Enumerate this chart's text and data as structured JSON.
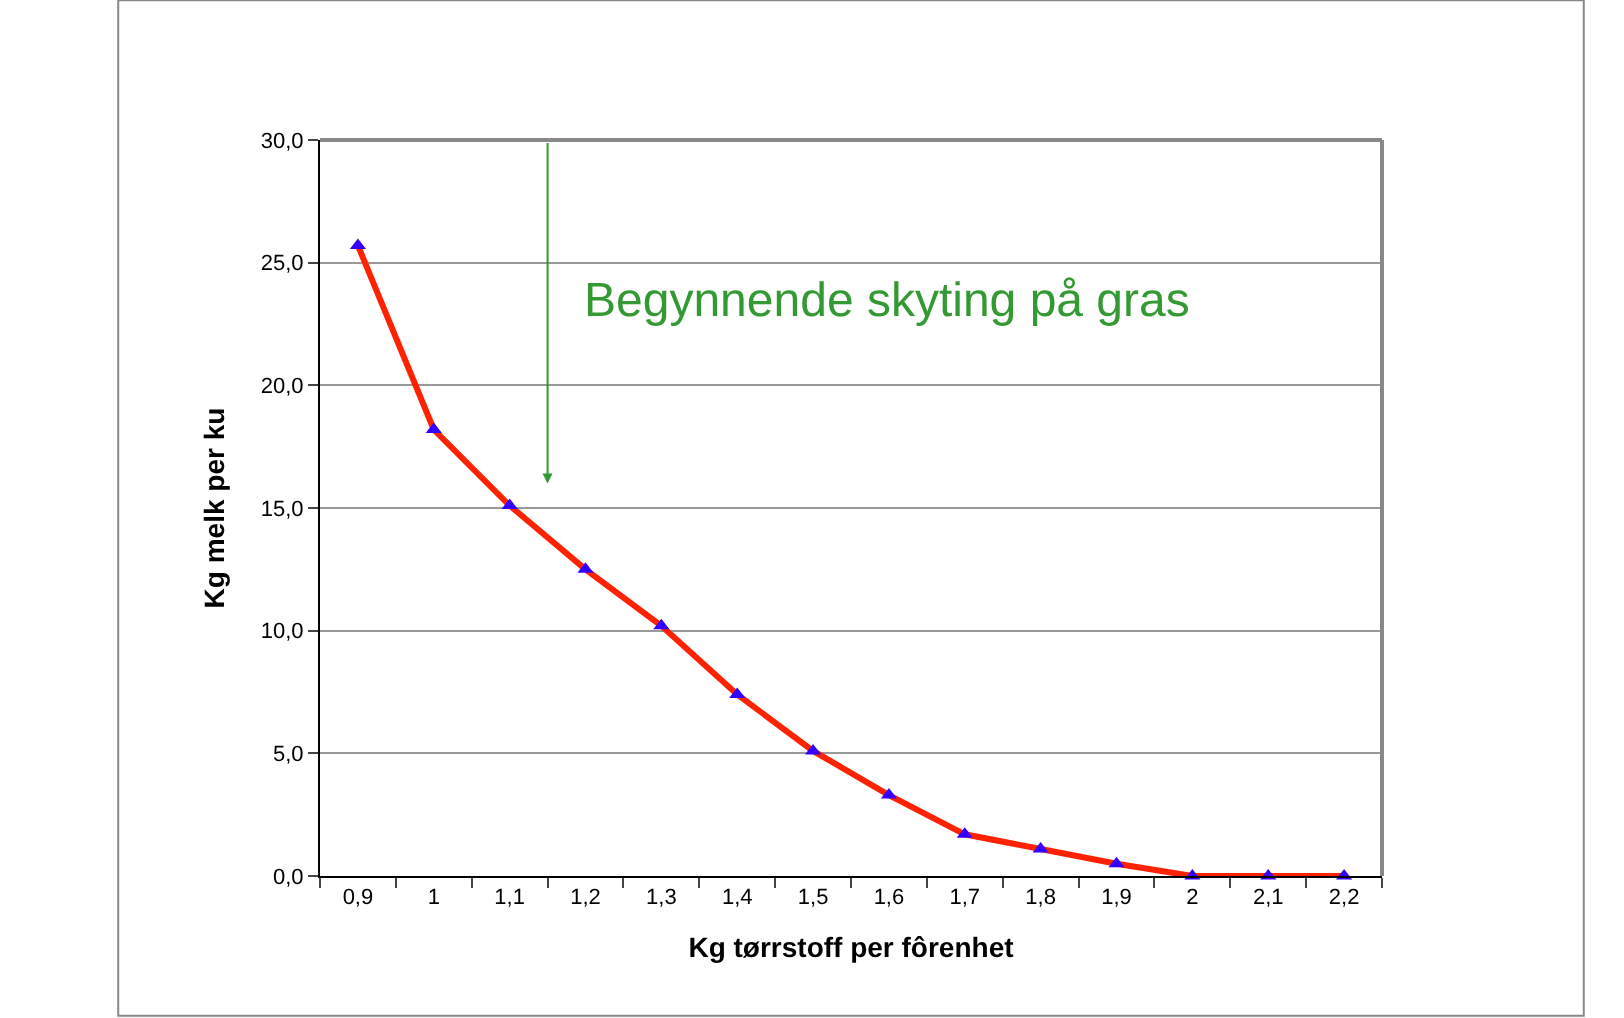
{
  "chart_data": {
    "type": "line",
    "xlabel": "Kg tørrstoff per fôrenhet",
    "ylabel": "Kg melk per ku",
    "categories": [
      "0,9",
      "1",
      "1,1",
      "1,2",
      "1,3",
      "1,4",
      "1,5",
      "1,6",
      "1,7",
      "1,8",
      "1,9",
      "2",
      "2,1",
      "2,2"
    ],
    "series": [
      {
        "color": "#ff2200",
        "colors": [
          "#3300ff",
          "#3300ff",
          "#3300ff",
          "#3300ff",
          "#3300ff",
          "#3300ff",
          "#3300ff",
          "#3300ff",
          "#3300ff",
          "#3300ff",
          "#3300ff",
          "#3300ff",
          "#3300ff",
          "#3300ff"
        ],
        "values": [
          25.7,
          18.2,
          15.1,
          12.5,
          10.2,
          7.4,
          5.1,
          3.3,
          1.7,
          1.1,
          0.5,
          0,
          0,
          0
        ]
      }
    ],
    "ylim": [
      0,
      30
    ],
    "yticks": [
      {
        "value": 0,
        "label": "0,0"
      },
      {
        "value": 5,
        "label": "5,0"
      },
      {
        "value": 10,
        "label": "10,0"
      },
      {
        "value": 15,
        "label": "15,0"
      },
      {
        "value": 20,
        "label": "20,0"
      },
      {
        "value": 25,
        "label": "25,0"
      },
      {
        "value": 30,
        "label": "30,0"
      }
    ],
    "grid": "y",
    "legend": false,
    "marker": "triangle",
    "line_style": "solid",
    "annotations": [
      "Begynnende skyting på gras"
    ]
  }
}
